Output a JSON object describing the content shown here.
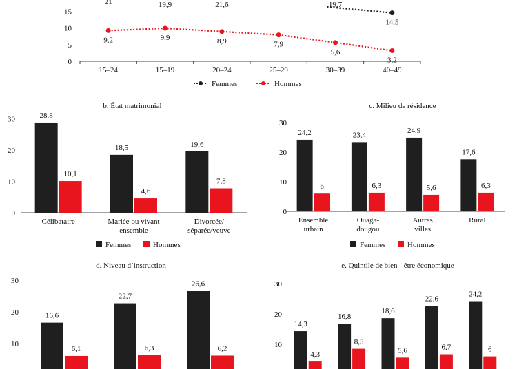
{
  "colors": {
    "femmes": "#1f1f1f",
    "hommes": "#e8151f",
    "axis": "#444444"
  },
  "chart_data": [
    {
      "type": "line",
      "title": "",
      "categories": [
        "15–24",
        "15–19",
        "20–24",
        "25–29",
        "30–39",
        "40–49"
      ],
      "ylim": [
        0,
        20
      ],
      "yticks": [
        "0",
        "5",
        "10",
        "15"
      ],
      "series": [
        {
          "name": "Femmes",
          "values": [
            21,
            19.9,
            21.6,
            null,
            19.7,
            14.5
          ],
          "labels": [
            "21",
            "19,9",
            "21,6",
            "",
            "19,7",
            "14,5"
          ]
        },
        {
          "name": "Hommes",
          "values": [
            9.2,
            9.9,
            8.9,
            7.9,
            5.6,
            3.2
          ],
          "labels": [
            "9,2",
            "9,9",
            "8,9",
            "7,9",
            "5,6",
            "3,2"
          ]
        }
      ],
      "legend": [
        "Femmes",
        "Hommes"
      ]
    },
    {
      "type": "bar",
      "title": "b. État matrimonial",
      "categories": [
        [
          "Célibataire"
        ],
        [
          "Mariée ou vivant",
          "ensemble"
        ],
        [
          "Divorcée/",
          "séparée/veuve"
        ]
      ],
      "ylim": [
        0,
        30
      ],
      "yticks": [
        "0",
        "10",
        "20",
        "30"
      ],
      "series": [
        {
          "name": "Femmes",
          "values": [
            28.8,
            18.5,
            19.6
          ],
          "labels": [
            "28,8",
            "18,5",
            "19,6"
          ]
        },
        {
          "name": "Hommes",
          "values": [
            10.1,
            4.6,
            7.8
          ],
          "labels": [
            "10,1",
            "4,6",
            "7,8"
          ]
        }
      ],
      "legend": [
        "Femmes",
        "Hommes"
      ]
    },
    {
      "type": "bar",
      "title": "c. Milieu de résidence",
      "categories": [
        [
          "Ensemble",
          "urbain"
        ],
        [
          "Ouaga-",
          "dougou"
        ],
        [
          "Autres",
          "villes"
        ],
        [
          "Rural"
        ]
      ],
      "ylim": [
        0,
        30
      ],
      "yticks": [
        "0",
        "10",
        "20",
        "30"
      ],
      "series": [
        {
          "name": "Femmes",
          "values": [
            24.2,
            23.4,
            24.9,
            17.6
          ],
          "labels": [
            "24,2",
            "23,4",
            "24,9",
            "17,6"
          ]
        },
        {
          "name": "Hommes",
          "values": [
            6,
            6.3,
            5.6,
            6.3
          ],
          "labels": [
            "6",
            "6,3",
            "5,6",
            "6,3"
          ]
        }
      ],
      "legend": [
        "Femmes",
        "Hommes"
      ]
    },
    {
      "type": "bar",
      "title": "d. Niveau d’instruction",
      "categories": [
        [],
        [],
        []
      ],
      "ylim": [
        0,
        30
      ],
      "yticks": [
        "10",
        "20",
        "30"
      ],
      "series": [
        {
          "name": "Femmes",
          "values": [
            16.6,
            22.7,
            26.6
          ],
          "labels": [
            "16,6",
            "22,7",
            "26,6"
          ]
        },
        {
          "name": "Hommes",
          "values": [
            6.1,
            6.3,
            6.2
          ],
          "labels": [
            "6,1",
            "6,3",
            "6,2"
          ]
        }
      ]
    },
    {
      "type": "bar",
      "title": "e. Quintile de bien - être économique",
      "categories": [
        [],
        [],
        [],
        [],
        []
      ],
      "ylim": [
        0,
        30
      ],
      "yticks": [
        "10",
        "20",
        "30"
      ],
      "series": [
        {
          "name": "Femmes",
          "values": [
            14.3,
            16.8,
            18.6,
            22.6,
            24.2
          ],
          "labels": [
            "14,3",
            "16,8",
            "18,6",
            "22,6",
            "24,2"
          ]
        },
        {
          "name": "Hommes",
          "values": [
            4.3,
            8.5,
            5.6,
            6.7,
            6
          ],
          "labels": [
            "4,3",
            "8,5",
            "5,6",
            "6,7",
            "6"
          ]
        }
      ]
    }
  ]
}
